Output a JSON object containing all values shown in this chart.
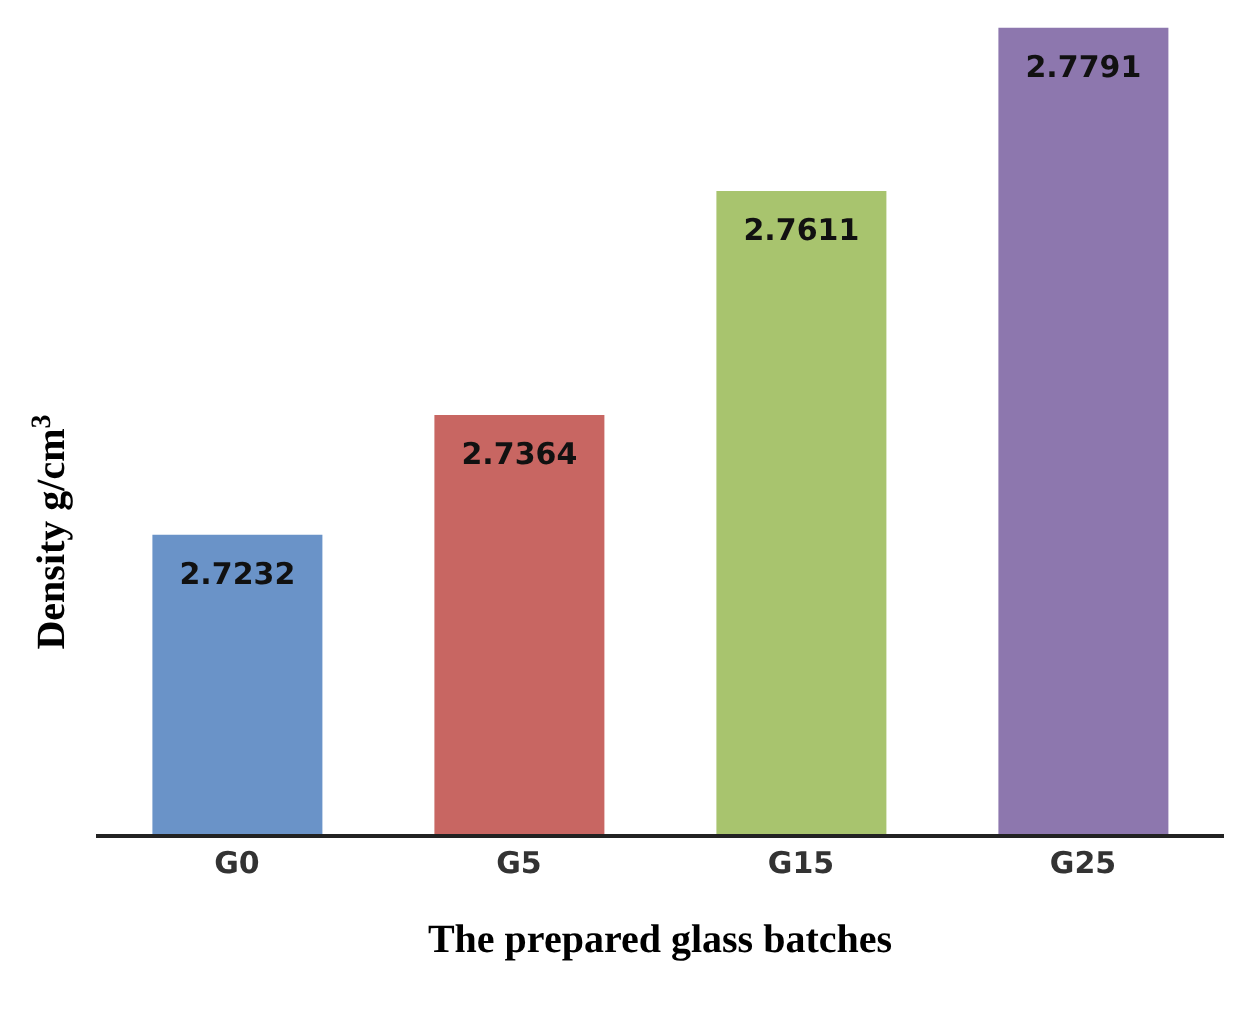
{
  "chart_data": {
    "type": "bar",
    "xlabel": "The prepared glass batches",
    "ylabel": "Density g/cm$^{3}$",
    "categories": [
      "G0",
      "G5",
      "G15",
      "G25"
    ],
    "values": [
      2.7232,
      2.7364,
      2.7611,
      2.7791
    ],
    "colors": [
      "#6a93c8",
      "#c86662",
      "#a8c46e",
      "#8d77ae"
    ],
    "ylim": [
      2.69,
      2.7795
    ],
    "data_labels": true
  }
}
